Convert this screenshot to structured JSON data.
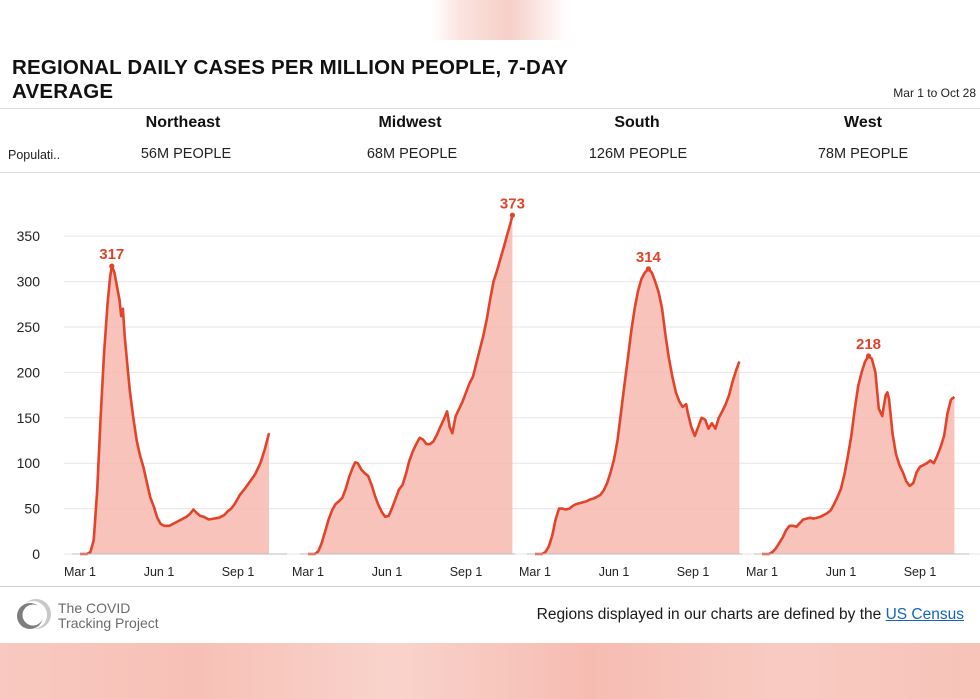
{
  "title": "REGIONAL DAILY CASES PER MILLION PEOPLE, 7-DAY AVERAGE",
  "date_range": "Mar 1 to Oct 28",
  "population_label": "Populati..",
  "footer": {
    "logo_text_line1": "The COVID",
    "logo_text_line2": "Tracking Project",
    "note": "Regions displayed in our charts are defined by the",
    "link_text": "US Census"
  },
  "colors": {
    "line": "#e2432a",
    "fill": "#f7b9ae",
    "peak_label": "#e2432a"
  },
  "chart_data": {
    "type": "area",
    "title": "REGIONAL DAILY CASES PER MILLION PEOPLE, 7-DAY AVERAGE",
    "ylim": [
      0,
      370
    ],
    "yticks": [
      0,
      50,
      100,
      150,
      200,
      250,
      300,
      350
    ],
    "xticks": [
      "Mar 1",
      "Jun 1",
      "Sep 1"
    ],
    "x_tick_days": [
      0,
      92,
      184
    ],
    "x_range_days": [
      0,
      241
    ],
    "grid": true,
    "panels": [
      {
        "name": "Northeast",
        "population": "56M PEOPLE",
        "peak_label": "317",
        "peak_day": 37,
        "points": [
          [
            0,
            0
          ],
          [
            8,
            0
          ],
          [
            12,
            2
          ],
          [
            16,
            15
          ],
          [
            20,
            70
          ],
          [
            24,
            150
          ],
          [
            28,
            220
          ],
          [
            32,
            275
          ],
          [
            35,
            305
          ],
          [
            37,
            317
          ],
          [
            40,
            310
          ],
          [
            43,
            295
          ],
          [
            46,
            280
          ],
          [
            48,
            262
          ],
          [
            50,
            270
          ],
          [
            52,
            240
          ],
          [
            55,
            210
          ],
          [
            58,
            180
          ],
          [
            62,
            150
          ],
          [
            66,
            125
          ],
          [
            70,
            108
          ],
          [
            74,
            95
          ],
          [
            78,
            78
          ],
          [
            82,
            62
          ],
          [
            86,
            52
          ],
          [
            90,
            40
          ],
          [
            94,
            33
          ],
          [
            98,
            31
          ],
          [
            104,
            31
          ],
          [
            110,
            34
          ],
          [
            116,
            37
          ],
          [
            120,
            39
          ],
          [
            124,
            41
          ],
          [
            128,
            44
          ],
          [
            132,
            49
          ],
          [
            136,
            45
          ],
          [
            140,
            42
          ],
          [
            144,
            41
          ],
          [
            150,
            38
          ],
          [
            156,
            39
          ],
          [
            162,
            40
          ],
          [
            168,
            43
          ],
          [
            172,
            47
          ],
          [
            176,
            50
          ],
          [
            180,
            55
          ],
          [
            186,
            65
          ],
          [
            192,
            72
          ],
          [
            198,
            80
          ],
          [
            204,
            88
          ],
          [
            210,
            100
          ],
          [
            215,
            115
          ],
          [
            220,
            133
          ]
        ]
      },
      {
        "name": "Midwest",
        "population": "68M PEOPLE",
        "peak_label": "373",
        "peak_day": 238,
        "points": [
          [
            0,
            0
          ],
          [
            8,
            0
          ],
          [
            12,
            3
          ],
          [
            16,
            12
          ],
          [
            20,
            25
          ],
          [
            24,
            38
          ],
          [
            28,
            48
          ],
          [
            32,
            55
          ],
          [
            36,
            58
          ],
          [
            40,
            62
          ],
          [
            44,
            72
          ],
          [
            48,
            85
          ],
          [
            52,
            95
          ],
          [
            55,
            101
          ],
          [
            58,
            100
          ],
          [
            62,
            93
          ],
          [
            66,
            89
          ],
          [
            70,
            86
          ],
          [
            74,
            76
          ],
          [
            78,
            64
          ],
          [
            82,
            54
          ],
          [
            86,
            46
          ],
          [
            90,
            41
          ],
          [
            94,
            42
          ],
          [
            98,
            51
          ],
          [
            102,
            61
          ],
          [
            106,
            71
          ],
          [
            110,
            76
          ],
          [
            114,
            88
          ],
          [
            118,
            103
          ],
          [
            122,
            113
          ],
          [
            126,
            121
          ],
          [
            130,
            128
          ],
          [
            134,
            126
          ],
          [
            138,
            121
          ],
          [
            142,
            121
          ],
          [
            146,
            124
          ],
          [
            150,
            131
          ],
          [
            154,
            140
          ],
          [
            158,
            148
          ],
          [
            162,
            157
          ],
          [
            165,
            140
          ],
          [
            168,
            133
          ],
          [
            172,
            152
          ],
          [
            176,
            160
          ],
          [
            180,
            168
          ],
          [
            184,
            178
          ],
          [
            188,
            188
          ],
          [
            192,
            195
          ],
          [
            196,
            210
          ],
          [
            200,
            225
          ],
          [
            204,
            240
          ],
          [
            208,
            258
          ],
          [
            212,
            280
          ],
          [
            216,
            300
          ],
          [
            220,
            312
          ],
          [
            224,
            325
          ],
          [
            228,
            338
          ],
          [
            232,
            352
          ],
          [
            236,
            365
          ],
          [
            238,
            373
          ]
        ]
      },
      {
        "name": "South",
        "population": "126M PEOPLE",
        "peak_label": "314",
        "peak_day": 132,
        "points": [
          [
            0,
            0
          ],
          [
            8,
            0
          ],
          [
            12,
            2
          ],
          [
            16,
            8
          ],
          [
            20,
            20
          ],
          [
            24,
            38
          ],
          [
            28,
            50
          ],
          [
            32,
            50
          ],
          [
            36,
            49
          ],
          [
            40,
            50
          ],
          [
            44,
            53
          ],
          [
            48,
            55
          ],
          [
            52,
            56
          ],
          [
            56,
            57
          ],
          [
            60,
            58
          ],
          [
            64,
            60
          ],
          [
            68,
            61
          ],
          [
            72,
            63
          ],
          [
            76,
            65
          ],
          [
            80,
            70
          ],
          [
            84,
            78
          ],
          [
            88,
            90
          ],
          [
            92,
            104
          ],
          [
            96,
            125
          ],
          [
            100,
            155
          ],
          [
            104,
            185
          ],
          [
            108,
            215
          ],
          [
            112,
            245
          ],
          [
            116,
            270
          ],
          [
            120,
            290
          ],
          [
            124,
            303
          ],
          [
            128,
            310
          ],
          [
            132,
            314
          ],
          [
            136,
            310
          ],
          [
            140,
            300
          ],
          [
            144,
            288
          ],
          [
            148,
            270
          ],
          [
            152,
            240
          ],
          [
            156,
            215
          ],
          [
            160,
            195
          ],
          [
            164,
            178
          ],
          [
            168,
            168
          ],
          [
            172,
            162
          ],
          [
            176,
            165
          ],
          [
            178,
            155
          ],
          [
            182,
            140
          ],
          [
            186,
            130
          ],
          [
            190,
            140
          ],
          [
            194,
            150
          ],
          [
            198,
            148
          ],
          [
            202,
            138
          ],
          [
            206,
            144
          ],
          [
            210,
            138
          ],
          [
            214,
            150
          ],
          [
            218,
            157
          ],
          [
            222,
            165
          ],
          [
            226,
            175
          ],
          [
            230,
            190
          ],
          [
            234,
            202
          ],
          [
            238,
            212
          ]
        ]
      },
      {
        "name": "West",
        "population": "78M PEOPLE",
        "peak_label": "218",
        "peak_day": 124,
        "points": [
          [
            0,
            0
          ],
          [
            8,
            0
          ],
          [
            12,
            2
          ],
          [
            16,
            6
          ],
          [
            20,
            12
          ],
          [
            24,
            18
          ],
          [
            28,
            26
          ],
          [
            32,
            31
          ],
          [
            36,
            31
          ],
          [
            40,
            30
          ],
          [
            44,
            34
          ],
          [
            48,
            38
          ],
          [
            52,
            39
          ],
          [
            56,
            40
          ],
          [
            60,
            39
          ],
          [
            64,
            40
          ],
          [
            68,
            41
          ],
          [
            72,
            43
          ],
          [
            76,
            45
          ],
          [
            80,
            48
          ],
          [
            84,
            55
          ],
          [
            88,
            63
          ],
          [
            92,
            72
          ],
          [
            96,
            88
          ],
          [
            100,
            108
          ],
          [
            104,
            130
          ],
          [
            108,
            160
          ],
          [
            112,
            185
          ],
          [
            116,
            200
          ],
          [
            120,
            212
          ],
          [
            124,
            218
          ],
          [
            128,
            215
          ],
          [
            132,
            200
          ],
          [
            136,
            160
          ],
          [
            140,
            152
          ],
          [
            144,
            175
          ],
          [
            146,
            178
          ],
          [
            148,
            170
          ],
          [
            152,
            132
          ],
          [
            156,
            110
          ],
          [
            160,
            98
          ],
          [
            164,
            90
          ],
          [
            168,
            80
          ],
          [
            172,
            75
          ],
          [
            176,
            78
          ],
          [
            180,
            90
          ],
          [
            184,
            96
          ],
          [
            188,
            98
          ],
          [
            192,
            100
          ],
          [
            196,
            103
          ],
          [
            200,
            100
          ],
          [
            204,
            108
          ],
          [
            208,
            118
          ],
          [
            212,
            130
          ],
          [
            216,
            155
          ],
          [
            220,
            170
          ],
          [
            224,
            173
          ]
        ]
      }
    ]
  }
}
